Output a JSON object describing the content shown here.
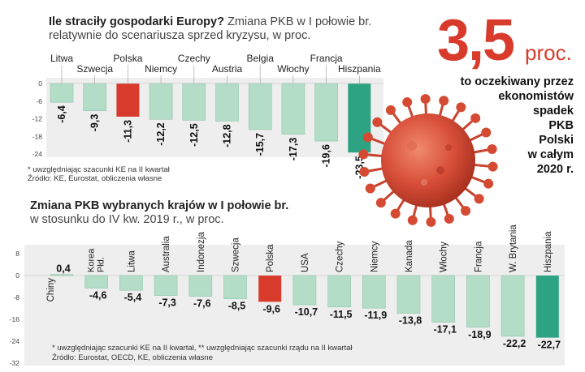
{
  "chart1": {
    "title_bold": "Ile straciły gospodarki Europy?",
    "title_rest": "Zmiana PKB w I połowie br.",
    "subtitle": "relatywnie do scenariusza sprzed kryzysu, w proc.",
    "note1": "* uwzględniając szacunki KE na II kwartał",
    "note2": "Źródło: KE, Eurostat, obliczenia własne"
  },
  "chart2": {
    "title": "Zmiana PKB wybranych krajów w I połowie br.",
    "subtitle": "w stosunku do IV kw. 2019 r., w proc.",
    "note1": "* uwzględniając szacunki KE na II kwartał, ** uwzględniając szacunki rządu na II kwartał",
    "note2": "Źródło: Eurostat, OECD, KE, obliczenia własne"
  },
  "callout": {
    "value": "3,5",
    "unit": "proc.",
    "lines": [
      "to oczekiwany przez",
      "ekonomistów",
      "spadek",
      "PKB",
      "Polski",
      "w całym",
      "2020 r."
    ]
  },
  "colors": {
    "bar": "#b4ddc8",
    "bar_stroke": "#8fc5ab",
    "highlight": "#d83b2b",
    "extreme": "#2ea383",
    "panel": "#eeeeee"
  },
  "chart_data": [
    {
      "type": "bar",
      "title": "Ile straciły gospodarki Europy? Zmiana PKB w I połowie br.",
      "categories": [
        "Litwa",
        "Szwecja",
        "Polska",
        "Niemcy",
        "Czechy",
        "Austria",
        "Belgia",
        "Włochy",
        "Francja",
        "Hiszpania"
      ],
      "values": [
        -6.4,
        -9.3,
        -11.3,
        -12.2,
        -12.5,
        -12.8,
        -15.7,
        -17.3,
        -19.6,
        -23.5
      ],
      "labels": [
        "-6,4",
        "-9,3",
        "-11,3",
        "-12,2",
        "-12,5",
        "-12,8",
        "-15,7",
        "-17,3",
        "-19,6",
        "-23,5"
      ],
      "yticks": [
        "0",
        "-6",
        "-12",
        "-18",
        "-24"
      ],
      "ylim": [
        -24,
        0
      ],
      "highlight": [
        "Polska"
      ],
      "extreme": [
        "Hiszpania"
      ]
    },
    {
      "type": "bar",
      "title": "Zmiana PKB wybranych krajów w I połowie br.",
      "categories": [
        "Chiny",
        "Korea Płd.",
        "Litwa",
        "Australia",
        "Indonezja",
        "Szwecja",
        "Polska",
        "USA",
        "Czechy",
        "Niemcy",
        "Kanada",
        "Włochy",
        "Francja",
        "W. Brytania",
        "Hiszpania"
      ],
      "values": [
        0.4,
        -4.6,
        -5.4,
        -7.3,
        -7.6,
        -8.5,
        -9.6,
        -10.7,
        -11.5,
        -11.9,
        -13.8,
        -17.1,
        -18.9,
        -22.2,
        -22.7
      ],
      "labels": [
        "0,4",
        "-4,6",
        "-5,4",
        "-7,3",
        "-7,6",
        "-8,5",
        "-9,6",
        "-10,7",
        "-11,5",
        "-11,9",
        "-13,8",
        "-17,1",
        "-18,9",
        "-22,2",
        "-22,7"
      ],
      "yticks": [
        "8",
        "0",
        "-8",
        "-16",
        "-24",
        "-32"
      ],
      "ylim": [
        -32,
        8
      ],
      "highlight": [
        "Polska"
      ],
      "extreme": [
        "Hiszpania"
      ]
    }
  ]
}
